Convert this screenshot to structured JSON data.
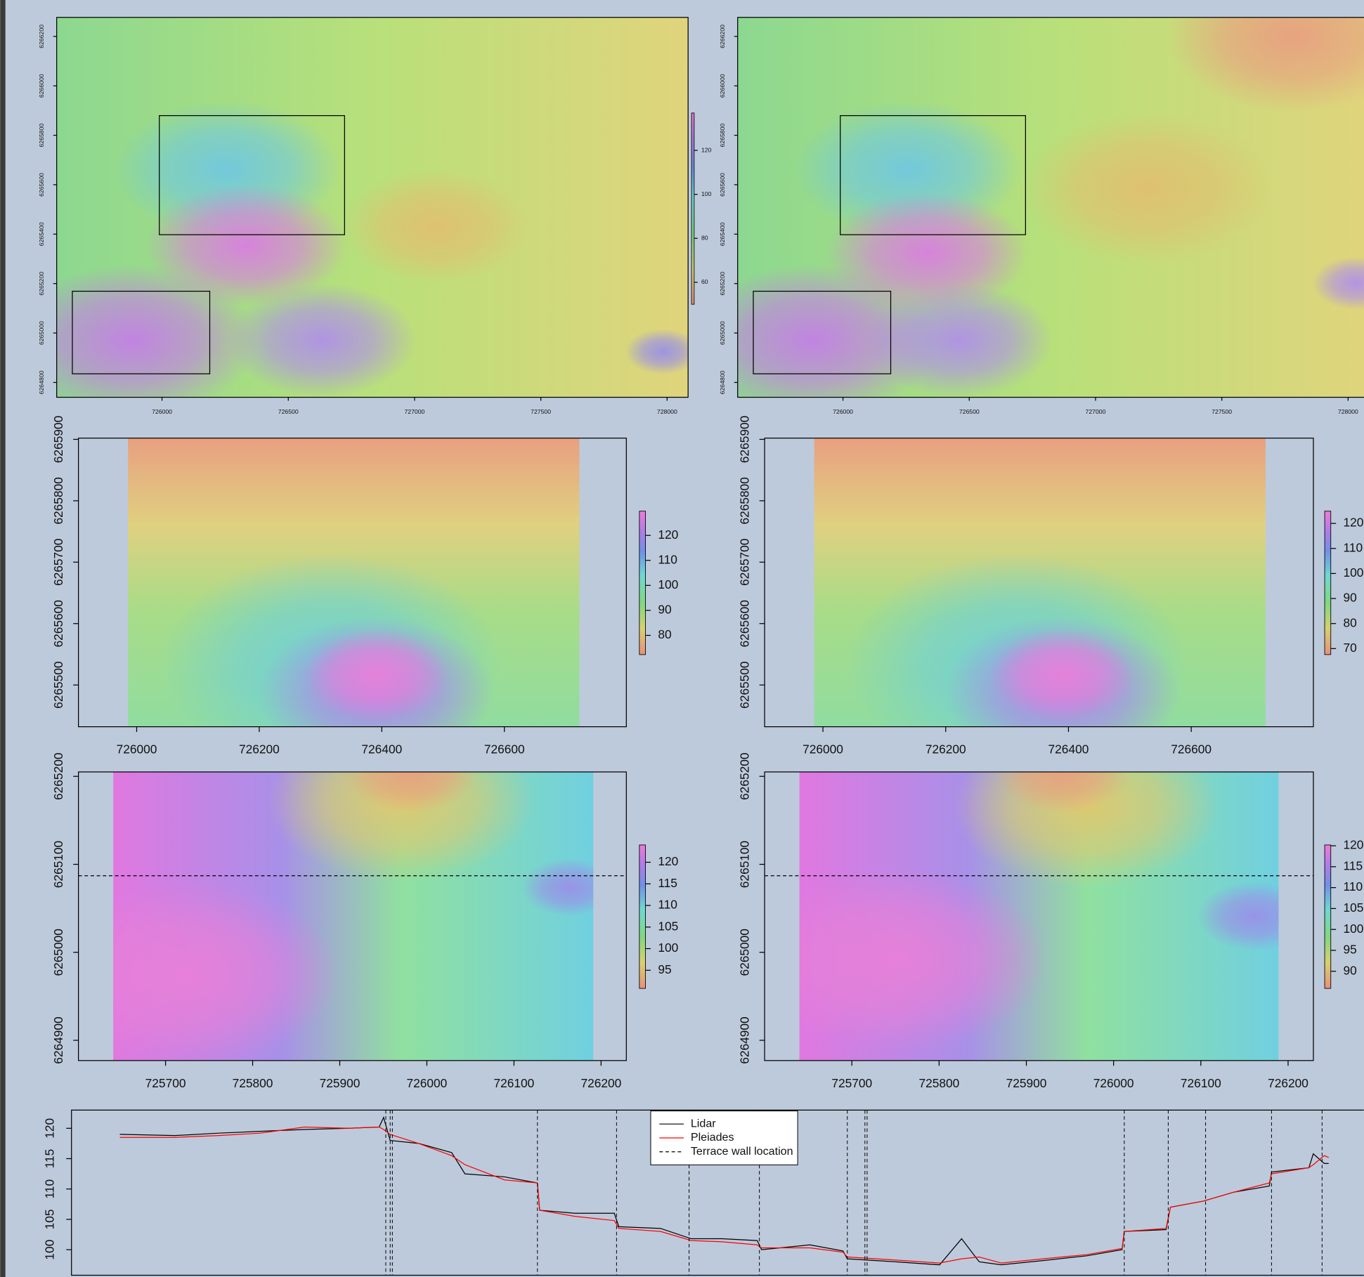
{
  "chart_data": [
    {
      "type": "map",
      "xlim": [
        725583,
        728083
      ],
      "ylim": [
        6264740,
        6266277
      ],
      "xticks": [
        726000,
        726500,
        727000,
        727500,
        728000
      ],
      "yticks": [
        6264800,
        6265000,
        6265200,
        6265400,
        6265600,
        6265800,
        6266000,
        6266200
      ],
      "colorbar": {
        "lim": [
          50,
          137
        ],
        "ticks": [
          60,
          80,
          100,
          120
        ]
      }
    },
    {
      "type": "map",
      "xlim": [
        725583,
        728083
      ],
      "ylim": [
        6264740,
        6266277
      ],
      "xticks": [
        726000,
        726500,
        727000,
        727500,
        728000
      ],
      "yticks": [
        6264800,
        6265000,
        6265200,
        6265400,
        6265600,
        6265800,
        6266000,
        6266200
      ]
    },
    {
      "type": "map",
      "xlim": [
        725905,
        726799
      ],
      "ylim": [
        6265432,
        6265902
      ],
      "xticks": [
        726000,
        726200,
        726400,
        726600
      ],
      "yticks": [
        6265500,
        6265600,
        6265700,
        6265800,
        6265900
      ],
      "colorbar": {
        "lim": [
          72.3,
          129.7
        ],
        "ticks": [
          80,
          90,
          100,
          110,
          120
        ]
      }
    },
    {
      "type": "map",
      "xlim": [
        725905,
        726799
      ],
      "ylim": [
        6265432,
        6265902
      ],
      "xticks": [
        726000,
        726200,
        726400,
        726600
      ],
      "yticks": [
        6265500,
        6265600,
        6265700,
        6265800,
        6265900
      ],
      "colorbar": {
        "lim": [
          67.6,
          124.9
        ],
        "ticks": [
          70,
          80,
          90,
          100,
          110,
          120
        ]
      }
    },
    {
      "type": "map",
      "xlim": [
        725600,
        726229
      ],
      "ylim": [
        6264877,
        6265205
      ],
      "xticks": [
        725700,
        725800,
        725900,
        726000,
        726100,
        726200
      ],
      "yticks": [
        6264900,
        6265000,
        6265100,
        6265200
      ],
      "profile_y": 6265087,
      "colorbar": {
        "lim": [
          90.8,
          124
        ],
        "ticks": [
          95,
          100,
          105,
          110,
          115,
          120
        ]
      }
    },
    {
      "type": "map",
      "xlim": [
        725600,
        726229
      ],
      "ylim": [
        6264877,
        6265205
      ],
      "xticks": [
        725700,
        725800,
        725900,
        726000,
        726100,
        726200
      ],
      "yticks": [
        6264900,
        6265000,
        6265100,
        6265200
      ],
      "profile_y": 6265087,
      "colorbar": {
        "lim": [
          85.9,
          120.2
        ],
        "ticks": [
          90,
          95,
          100,
          105,
          110,
          115,
          120
        ]
      }
    },
    {
      "type": "line",
      "xlim": [
        725618,
        726206
      ],
      "ylim": [
        95.5,
        123
      ],
      "yticks": [
        100,
        105,
        110,
        115,
        120
      ],
      "x": [
        725640,
        725665,
        725685,
        725704,
        725724,
        725744,
        725758,
        725760,
        725763,
        725776,
        725791,
        725797,
        725815,
        725830,
        725831,
        725847,
        725865,
        725867,
        725886,
        725900,
        725914,
        725930,
        725932,
        725954,
        725969,
        725971,
        725993,
        726013,
        726023,
        726031,
        726041,
        726060,
        726080,
        726096,
        726097,
        726116,
        726118,
        726133,
        726147,
        726163,
        726164,
        726181,
        726183,
        726188,
        726190
      ],
      "series": [
        {
          "name": "Lidar",
          "color": "#000000",
          "values": [
            119,
            118.8,
            119.2,
            119.5,
            119.8,
            120,
            120.2,
            121.8,
            118,
            117.5,
            116,
            112.5,
            112,
            111,
            106.5,
            106,
            106,
            103.8,
            103.5,
            101.8,
            101.8,
            101.5,
            100,
            100.8,
            99.8,
            98.5,
            98,
            97.5,
            101.8,
            98,
            97.5,
            98.2,
            99,
            100,
            103,
            103.3,
            107,
            108,
            109.5,
            110.5,
            112.8,
            113.5,
            115.8,
            114.2,
            114.2
          ]
        },
        {
          "name": "Pleiades",
          "color": "#ff0000",
          "values": [
            118.5,
            118.5,
            118.8,
            119.2,
            120.2,
            120,
            120.2,
            119.8,
            119,
            117.5,
            115.5,
            114,
            111.5,
            111,
            106.5,
            105.5,
            104.8,
            103.5,
            103,
            101.5,
            101.3,
            100.8,
            100.3,
            100.3,
            99.6,
            98.8,
            98.3,
            97.8,
            98.5,
            98.8,
            97.8,
            98.5,
            99.2,
            100.2,
            103,
            103.5,
            107,
            108,
            109.5,
            111,
            112.5,
            113.5,
            114,
            115.5,
            115.2
          ]
        },
        {
          "name": "Terrace wall location",
          "color": "#000000",
          "linestyle": "dashed",
          "x": [
            725761,
            725763,
            725764,
            725830,
            725866,
            725899,
            725931,
            725971,
            725979,
            725980,
            726097,
            726117,
            726134,
            726164,
            726187
          ]
        }
      ]
    }
  ]
}
